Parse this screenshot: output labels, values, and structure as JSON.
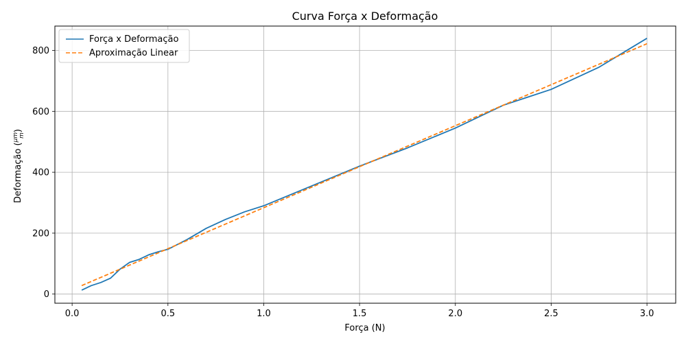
{
  "chart_data": {
    "type": "line",
    "title": "Curva Força x Deformação",
    "xlabel": "Força (N)",
    "ylabel": "Deformação (μm/m)",
    "xlim": [
      -0.09,
      3.15
    ],
    "ylim": [
      -30,
      880
    ],
    "xticks": [
      0.0,
      0.5,
      1.0,
      1.5,
      2.0,
      2.5,
      3.0
    ],
    "xtick_labels": [
      "0.0",
      "0.5",
      "1.0",
      "1.5",
      "2.0",
      "2.5",
      "3.0"
    ],
    "yticks": [
      0,
      200,
      400,
      600,
      800
    ],
    "ytick_labels": [
      "0",
      "200",
      "400",
      "600",
      "800"
    ],
    "grid": true,
    "legend_position": "top-left",
    "series": [
      {
        "name": "Força x Deformação",
        "color": "#1f77b4",
        "style": "solid",
        "x": [
          0.05,
          0.1,
          0.15,
          0.2,
          0.25,
          0.3,
          0.35,
          0.4,
          0.45,
          0.5,
          0.6,
          0.7,
          0.8,
          0.9,
          1.0,
          1.25,
          1.5,
          1.75,
          2.0,
          2.25,
          2.5,
          2.75,
          3.0
        ],
        "y": [
          13,
          28,
          38,
          52,
          82,
          104,
          114,
          129,
          139,
          147,
          179,
          216,
          245,
          270,
          290,
          355,
          420,
          480,
          545,
          620,
          672,
          745,
          840
        ]
      },
      {
        "name": "Aproximação Linear",
        "color": "#ff7f0e",
        "style": "dashed",
        "x": [
          0.05,
          3.0
        ],
        "y": [
          28,
          822
        ]
      }
    ]
  }
}
